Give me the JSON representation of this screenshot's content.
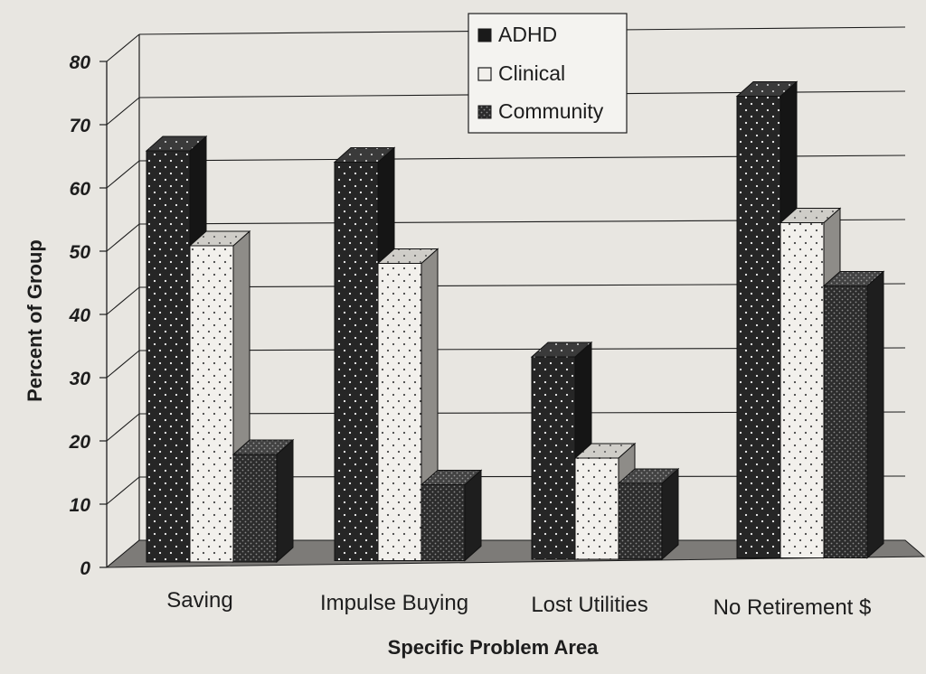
{
  "chart_data": {
    "type": "bar",
    "style": "3d-clustered",
    "categories": [
      "Saving",
      "Impulse Buying",
      "Lost Utilities",
      "No Retirement $"
    ],
    "series": [
      {
        "name": "ADHD",
        "values": [
          65,
          63,
          32,
          73
        ],
        "color": "#262626",
        "pattern": "dark-with-white-dots"
      },
      {
        "name": "Clinical",
        "values": [
          50,
          47,
          16,
          53
        ],
        "color": "#f2f0ec",
        "pattern": "light-with-dark-dots"
      },
      {
        "name": "Community",
        "values": [
          17,
          12,
          12,
          43
        ],
        "color": "#2c2c2c",
        "pattern": "dense-dots"
      }
    ],
    "xlabel": "Specific Problem Area",
    "ylabel": "Percent of Group",
    "ylim": [
      0,
      80
    ],
    "yticks": [
      0,
      10,
      20,
      30,
      40,
      50,
      60,
      70,
      80
    ],
    "grid": true,
    "legend_position": "top-center"
  }
}
